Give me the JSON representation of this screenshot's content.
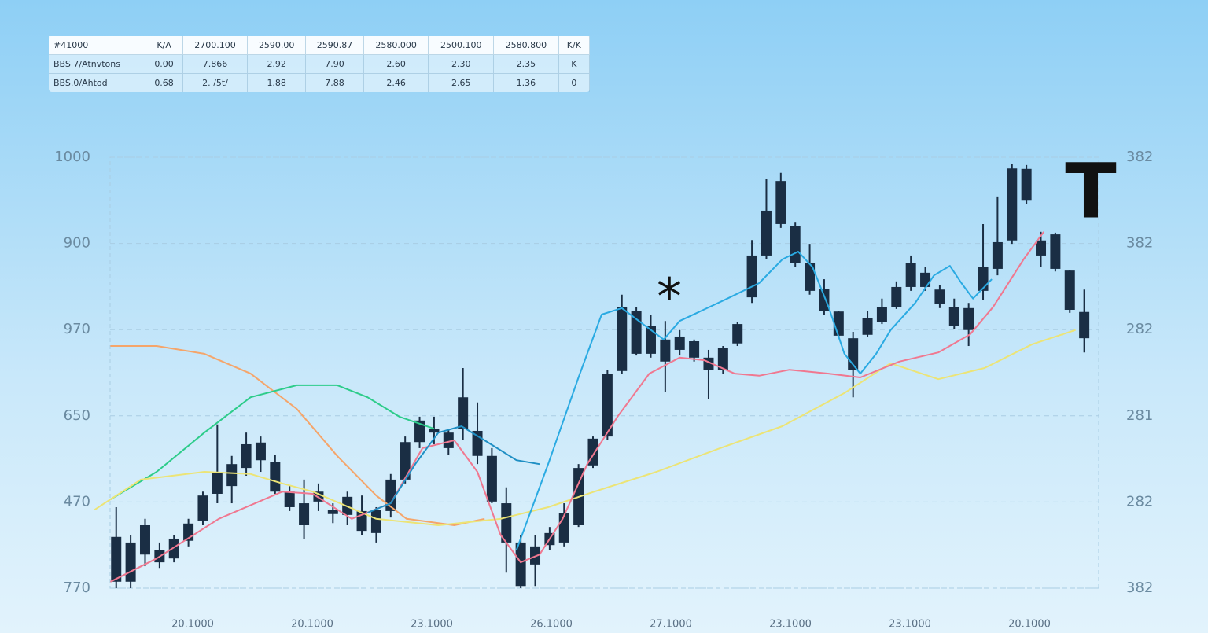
{
  "table": {
    "rows": [
      [
        "#41000",
        "K/A",
        "2700.100",
        "2590.00",
        "2590.87",
        "2580.000",
        "2500.100",
        "2580.800",
        "K/K"
      ],
      [
        "BBS 7/Atnvtons",
        "0.00",
        "7.866",
        "2.92",
        "7.90",
        "2.60",
        "2.30",
        "2.35",
        "K"
      ],
      [
        "BBS.0/Ahtod",
        "0.68",
        "2. /5t/",
        "1.88",
        "7.88",
        "2.46",
        "2.65",
        "1.36",
        "0"
      ]
    ]
  },
  "chart_data": {
    "type": "candlestick",
    "left_axis_labels": [
      "1000",
      "900",
      "970",
      "650",
      "470",
      "770"
    ],
    "right_axis_labels": [
      "382",
      "382",
      "282",
      "281",
      "282",
      "382"
    ],
    "x_labels": [
      "20.1000",
      "20.1000",
      "23.1000",
      "26.1000",
      "27.1000",
      "23.1000",
      "23.1000",
      "20.1000"
    ],
    "annotations": [
      "*",
      "T"
    ],
    "xlim": [
      -2,
      68
    ],
    "ylim": [
      0,
      100
    ],
    "grid": true,
    "color": "#1a2e44",
    "open": [
      1.5,
      1.5,
      7.8,
      6.0,
      6.9,
      11.0,
      15.7,
      21.9,
      23.7,
      27.9,
      29.7,
      22.4,
      18.8,
      14.6,
      20.1,
      17.2,
      17.0,
      13.3,
      12.8,
      17.9,
      25.2,
      33.9,
      36.1,
      32.5,
      37.0,
      30.7,
      20.1,
      10.6,
      0.5,
      5.5,
      10.0,
      10.6,
      14.6,
      28.5,
      35.2,
      50.4,
      54.4,
      54.4,
      52.6,
      55.3,
      53.5,
      50.7,
      50.7,
      56.8,
      67.5,
      77.2,
      84.5,
      75.4,
      69.0,
      64.4,
      58.6,
      50.7,
      58.8,
      61.7,
      65.3,
      69.9,
      69.9,
      65.9,
      60.8,
      59.9,
      69.0,
      74.1,
      80.7,
      90.1,
      77.2,
      74.1,
      64.6,
      58.0
    ],
    "close": [
      11.9,
      10.6,
      14.6,
      8.8,
      11.5,
      15.0,
      21.5,
      27.0,
      28.8,
      33.4,
      33.8,
      29.2,
      22.4,
      19.7,
      22.4,
      18.2,
      21.2,
      17.9,
      18.2,
      25.2,
      33.9,
      38.9,
      37.0,
      36.1,
      44.3,
      36.5,
      30.7,
      19.7,
      10.6,
      9.7,
      12.8,
      17.5,
      27.9,
      34.7,
      49.8,
      65.3,
      64.4,
      60.8,
      57.7,
      58.4,
      57.3,
      53.5,
      55.8,
      61.3,
      77.2,
      87.6,
      94.5,
      84.1,
      75.4,
      69.5,
      64.2,
      58.0,
      62.6,
      65.3,
      69.9,
      75.4,
      73.2,
      69.3,
      65.3,
      65.0,
      74.5,
      80.3,
      97.4,
      97.3,
      80.7,
      82.1,
      73.7,
      64.1
    ],
    "high": [
      18.8,
      12.4,
      16.1,
      10.6,
      12.4,
      16.1,
      22.4,
      38.0,
      30.7,
      36.1,
      35.2,
      31.0,
      23.7,
      25.2,
      24.3,
      19.7,
      22.4,
      21.5,
      18.8,
      26.5,
      35.2,
      39.8,
      39.8,
      37.0,
      51.1,
      43.1,
      32.5,
      23.4,
      12.4,
      12.4,
      14.2,
      19.7,
      28.8,
      35.2,
      50.7,
      68.1,
      65.3,
      63.5,
      62.0,
      59.9,
      57.7,
      55.3,
      56.2,
      61.7,
      80.8,
      94.9,
      96.4,
      85.0,
      79.9,
      71.7,
      64.4,
      59.5,
      64.4,
      67.2,
      71.2,
      77.2,
      74.5,
      70.4,
      67.2,
      66.2,
      84.5,
      90.9,
      98.5,
      98.2,
      82.7,
      82.5,
      73.9,
      69.3
    ],
    "low": [
      0,
      0,
      5.1,
      4.7,
      6.0,
      9.7,
      14.6,
      19.7,
      19.7,
      26.1,
      27.0,
      21.9,
      17.9,
      11.5,
      17.9,
      15.1,
      14.6,
      12.4,
      10.6,
      16.4,
      24.3,
      32.5,
      33.4,
      31.0,
      34.3,
      28.8,
      19.7,
      3.6,
      0,
      0.5,
      8.8,
      9.7,
      14.2,
      27.9,
      34.3,
      49.8,
      54.0,
      53.5,
      45.6,
      54.0,
      52.6,
      43.8,
      49.8,
      56.2,
      66.2,
      76.3,
      83.6,
      74.5,
      68.1,
      63.5,
      58.0,
      44.3,
      58.4,
      61.3,
      64.8,
      69.0,
      69.0,
      65.0,
      60.2,
      56.2,
      66.8,
      72.6,
      79.9,
      89.1,
      74.5,
      73.5,
      63.9,
      54.7
    ],
    "overlays": [
      {
        "color": "#f5a56a",
        "x": [
          -0.4,
          2.8,
          6.1,
          9.3,
          12.5,
          15.3,
          18.0,
          20.1,
          23.4,
          25.5
        ],
        "values": [
          56.2,
          56.2,
          54.4,
          49.8,
          41.6,
          30.7,
          21.5,
          16.1,
          14.6,
          16.1
        ]
      },
      {
        "color": "#2dcc8a",
        "x": [
          -0.4,
          2.8,
          6.1,
          9.3,
          12.5,
          15.3,
          17.4,
          19.6,
          22.0
        ],
        "values": [
          20.6,
          27.0,
          36.1,
          44.3,
          47.1,
          47.1,
          44.3,
          39.8,
          37.0
        ]
      },
      {
        "color": "#ece476",
        "x": [
          -1.5,
          1.7,
          6.1,
          9.3,
          11.5,
          13.6,
          18.0,
          22.3,
          26.6,
          29.9,
          33.1,
          37.4,
          41.8,
          46.1,
          50.4,
          53.6,
          56.9,
          60.1,
          63.4,
          66.4
        ],
        "values": [
          18.2,
          25.2,
          27.0,
          26.5,
          24.3,
          22.4,
          16.1,
          14.6,
          16.1,
          18.8,
          22.4,
          27.0,
          32.5,
          37.6,
          45.3,
          52.2,
          48.5,
          51.1,
          56.6,
          59.9
        ]
      },
      {
        "color": "#f07890",
        "x": [
          -0.4,
          2.8,
          7.1,
          11.5,
          13.6,
          16.3,
          19.0,
          21.2,
          23.4,
          25.0,
          26.6,
          28.0,
          29.3,
          30.9,
          32.6,
          34.7,
          36.9,
          39.0,
          40.7,
          42.8,
          44.5,
          46.6,
          49.3,
          51.5,
          54.2,
          56.9,
          59.1,
          60.7,
          62.8,
          64.2
        ],
        "values": [
          1.5,
          6.9,
          16.1,
          22.4,
          21.9,
          16.1,
          19.7,
          32.5,
          34.3,
          27.0,
          12.4,
          6.0,
          7.8,
          16.1,
          28.8,
          39.8,
          49.8,
          53.5,
          52.9,
          49.8,
          49.3,
          50.7,
          49.8,
          48.9,
          52.6,
          54.7,
          58.9,
          65.3,
          76.3,
          82.7
        ]
      },
      {
        "color": "#1f8fc4",
        "x": [
          17.4,
          19.0,
          20.7,
          22.3,
          23.9,
          25.5,
          27.7,
          29.3
        ],
        "values": [
          17.5,
          19.7,
          28.8,
          36.1,
          37.6,
          34.3,
          29.7,
          28.8
        ]
      },
      {
        "color": "#2aaae2",
        "x": [
          27.7,
          29.9,
          32.0,
          33.6,
          35.0,
          36.3,
          37.9,
          39.0,
          42.3,
          44.5,
          46.1,
          47.2,
          48.2,
          49.3,
          50.4,
          51.5,
          52.6,
          53.6,
          55.3,
          56.6,
          57.7,
          58.5,
          59.3,
          60.6
        ],
        "values": [
          8.8,
          28.8,
          48.9,
          63.5,
          65.0,
          61.7,
          57.7,
          62.0,
          67.2,
          70.8,
          76.3,
          78.1,
          74.5,
          65.3,
          54.4,
          49.8,
          54.4,
          59.9,
          66.2,
          72.6,
          74.8,
          70.8,
          67.2,
          71.7
        ]
      }
    ]
  }
}
